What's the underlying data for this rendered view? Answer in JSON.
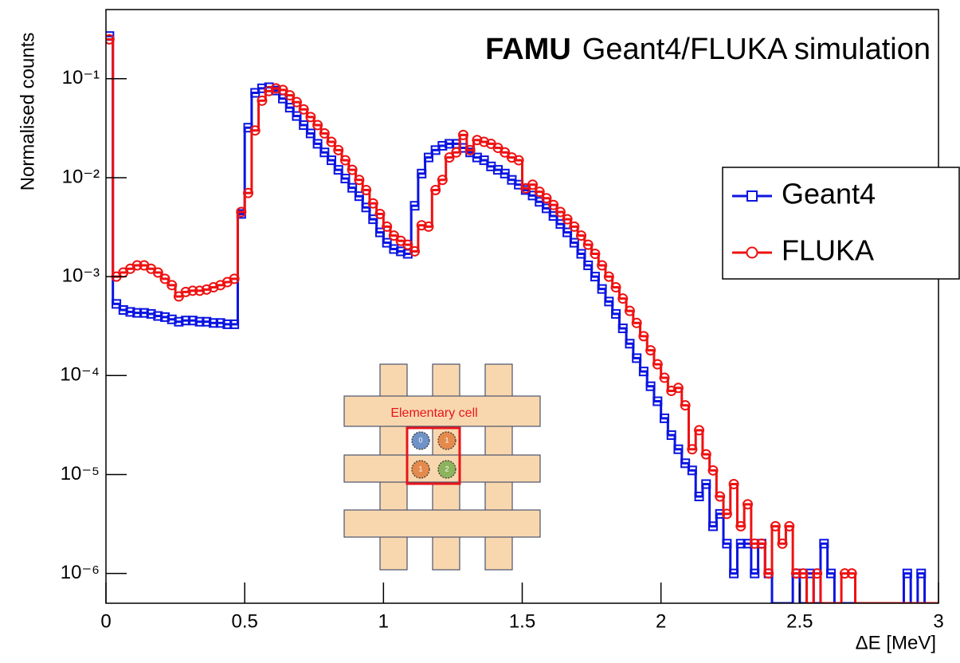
{
  "chart_data": {
    "type": "histogram",
    "title": {
      "bold": "FAMU",
      "rest": "Geant4/FLUKA simulation"
    },
    "xlabel": "ΔE [MeV]",
    "ylabel": "Normalised counts",
    "log_y": true,
    "xlim": [
      0,
      3
    ],
    "ylim": [
      5e-07,
      0.5
    ],
    "xticks": [
      0,
      0.5,
      1,
      1.5,
      2,
      2.5,
      3
    ],
    "yticks": [
      {
        "value": 1e-06,
        "label": "10⁻⁶"
      },
      {
        "value": 1e-05,
        "label": "10⁻⁵"
      },
      {
        "value": 0.0001,
        "label": "10⁻⁴"
      },
      {
        "value": 0.001,
        "label": "10⁻³"
      },
      {
        "value": 0.01,
        "label": "10⁻²"
      },
      {
        "value": 0.1,
        "label": "10⁻¹"
      }
    ],
    "legend": "right",
    "bins": [
      0,
      0.025,
      0.05,
      0.075,
      0.1,
      0.125,
      0.15,
      0.175,
      0.2,
      0.225,
      0.25,
      0.275,
      0.3,
      0.325,
      0.35,
      0.375,
      0.4,
      0.425,
      0.45,
      0.475,
      0.5,
      0.525,
      0.55,
      0.575,
      0.6,
      0.625,
      0.65,
      0.675,
      0.7,
      0.725,
      0.75,
      0.775,
      0.8,
      0.825,
      0.85,
      0.875,
      0.9,
      0.925,
      0.95,
      0.975,
      1,
      1.025,
      1.05,
      1.075,
      1.1,
      1.125,
      1.15,
      1.175,
      1.2,
      1.225,
      1.25,
      1.275,
      1.3,
      1.325,
      1.35,
      1.375,
      1.4,
      1.425,
      1.45,
      1.475,
      1.5,
      1.525,
      1.55,
      1.575,
      1.6,
      1.625,
      1.65,
      1.675,
      1.7,
      1.725,
      1.75,
      1.775,
      1.8,
      1.825,
      1.85,
      1.875,
      1.9,
      1.925,
      1.95,
      1.975,
      2,
      2.025,
      2.05,
      2.075,
      2.1,
      2.125,
      2.15,
      2.175,
      2.2,
      2.225,
      2.25,
      2.275,
      2.3,
      2.325,
      2.35,
      2.375,
      2.4,
      2.425,
      2.45,
      2.475,
      2.5,
      2.525,
      2.55,
      2.575,
      2.6,
      2.625,
      2.65,
      2.675,
      2.7,
      2.725,
      2.75,
      2.775,
      2.8,
      2.825,
      2.85,
      2.875,
      2.9,
      2.925,
      2.95,
      2.975,
      3
    ],
    "series": [
      {
        "name": "Geant4",
        "color": "#0a14e0",
        "marker": "square",
        "values": [
          0.27,
          0.00053,
          0.00046,
          0.00044,
          0.00043,
          0.00043,
          0.00042,
          0.0004,
          0.00039,
          0.00037,
          0.00035,
          0.00036,
          0.00036,
          0.00035,
          0.00035,
          0.00034,
          0.00034,
          0.00033,
          0.00033,
          0.0043,
          0.032,
          0.072,
          0.08,
          0.082,
          0.076,
          0.063,
          0.051,
          0.042,
          0.034,
          0.028,
          0.022,
          0.018,
          0.015,
          0.012,
          0.0098,
          0.0079,
          0.0065,
          0.005,
          0.0038,
          0.0028,
          0.0022,
          0.0019,
          0.0018,
          0.0017,
          0.0052,
          0.011,
          0.016,
          0.019,
          0.021,
          0.022,
          0.022,
          0.02,
          0.018,
          0.016,
          0.015,
          0.013,
          0.012,
          0.011,
          0.0095,
          0.0085,
          0.0075,
          0.0066,
          0.0057,
          0.0049,
          0.0041,
          0.0034,
          0.0028,
          0.0022,
          0.0017,
          0.0013,
          0.001,
          0.00075,
          0.00056,
          0.00042,
          0.0003,
          0.00021,
          0.00015,
          0.00011,
          7.8e-05,
          5.5e-05,
          3.7e-05,
          2.5e-05,
          1.8e-05,
          1.3e-05,
          1.1e-05,
          6e-06,
          8e-06,
          3e-06,
          4e-06,
          2e-06,
          1e-06,
          2e-06,
          2e-06,
          1e-06,
          2e-06,
          1e-06,
          0,
          0,
          0,
          1e-06,
          0,
          1e-06,
          0,
          2e-06,
          1e-06,
          0,
          0,
          0,
          0,
          0,
          0,
          0,
          0,
          0,
          0,
          1e-06,
          0,
          1e-06,
          0,
          0
        ]
      },
      {
        "name": "FLUKA",
        "color": "#ee1111",
        "marker": "circle",
        "values": [
          0.25,
          0.001,
          0.0011,
          0.0012,
          0.0013,
          0.0013,
          0.0012,
          0.0011,
          0.00095,
          0.00082,
          0.00063,
          0.0007,
          0.00072,
          0.00072,
          0.00074,
          0.00078,
          0.00082,
          0.00088,
          0.00095,
          0.0045,
          0.007,
          0.03,
          0.06,
          0.075,
          0.08,
          0.077,
          0.068,
          0.058,
          0.049,
          0.041,
          0.034,
          0.028,
          0.023,
          0.019,
          0.015,
          0.012,
          0.0095,
          0.0075,
          0.0055,
          0.0043,
          0.0032,
          0.0026,
          0.0023,
          0.0021,
          0.0018,
          0.0033,
          0.0032,
          0.0075,
          0.0095,
          0.016,
          0.018,
          0.027,
          0.019,
          0.024,
          0.023,
          0.022,
          0.02,
          0.018,
          0.016,
          0.015,
          0.0078,
          0.0085,
          0.0072,
          0.0062,
          0.0053,
          0.0045,
          0.0038,
          0.0032,
          0.0026,
          0.0021,
          0.0017,
          0.0013,
          0.001,
          0.00078,
          0.0006,
          0.00045,
          0.00034,
          0.00025,
          0.00018,
          0.00013,
          9.5e-05,
          7e-05,
          7.5e-05,
          5e-05,
          1.8e-05,
          2.8e-05,
          1.6e-05,
          1.1e-05,
          6e-06,
          4e-06,
          8e-06,
          3e-06,
          5e-06,
          2e-06,
          2e-06,
          1e-06,
          3e-06,
          2e-06,
          3e-06,
          1e-06,
          1e-06,
          0,
          1e-06,
          0,
          0,
          0,
          1e-06,
          1e-06,
          0,
          0,
          0,
          0,
          0,
          0,
          0,
          0,
          0,
          0,
          0,
          0
        ]
      }
    ],
    "inset": {
      "label": "Elementary cell",
      "cells": [
        "0",
        "1",
        "1",
        "2"
      ]
    }
  }
}
